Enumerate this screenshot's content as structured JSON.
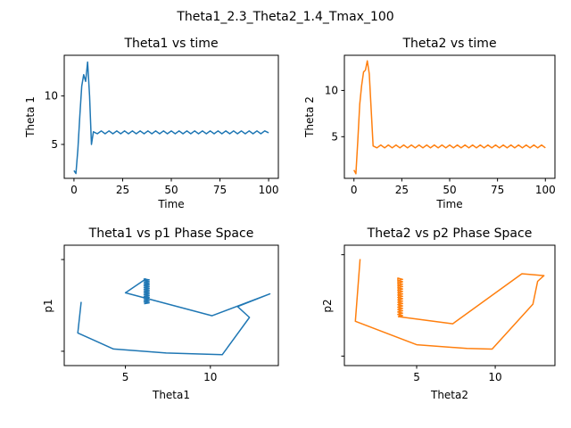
{
  "figure": {
    "suptitle": "Theta1_2.3_Theta2_1.4_Tmax_100"
  },
  "chart_data": [
    {
      "type": "line",
      "title": "Theta1 vs time",
      "xlabel": "Time",
      "ylabel": "Theta 1",
      "color": "#1f77b4",
      "xlim": [
        -5,
        105
      ],
      "ylim": [
        1.5,
        14.2
      ],
      "xticks": [
        0,
        25,
        50,
        75,
        100
      ],
      "yticks": [
        5,
        10
      ],
      "x": [
        0,
        1,
        2,
        3,
        4,
        5,
        6,
        7,
        8,
        9,
        10,
        12,
        14,
        16,
        18,
        20,
        22,
        24,
        26,
        28,
        30,
        32,
        34,
        36,
        38,
        40,
        42,
        44,
        46,
        48,
        50,
        52,
        54,
        56,
        58,
        60,
        62,
        64,
        66,
        68,
        70,
        72,
        74,
        76,
        78,
        80,
        82,
        84,
        86,
        88,
        90,
        92,
        94,
        96,
        98,
        100
      ],
      "y": [
        2.3,
        2.0,
        4.5,
        8.0,
        11.0,
        12.2,
        11.5,
        13.5,
        10.0,
        5.0,
        6.3,
        6.1,
        6.4,
        6.1,
        6.4,
        6.1,
        6.4,
        6.1,
        6.4,
        6.1,
        6.4,
        6.1,
        6.4,
        6.1,
        6.4,
        6.1,
        6.4,
        6.1,
        6.4,
        6.1,
        6.4,
        6.1,
        6.4,
        6.1,
        6.4,
        6.1,
        6.4,
        6.1,
        6.4,
        6.1,
        6.4,
        6.1,
        6.4,
        6.1,
        6.4,
        6.1,
        6.4,
        6.1,
        6.4,
        6.1,
        6.4,
        6.1,
        6.4,
        6.1,
        6.4,
        6.2
      ]
    },
    {
      "type": "line",
      "title": "Theta2 vs time",
      "xlabel": "Time",
      "ylabel": "Theta 2",
      "color": "#ff7f0e",
      "xlim": [
        -5,
        105
      ],
      "ylim": [
        0.5,
        13.8
      ],
      "xticks": [
        0,
        25,
        50,
        75,
        100
      ],
      "yticks": [
        5,
        10
      ],
      "x": [
        0,
        1,
        2,
        3,
        4,
        5,
        6,
        7,
        8,
        9,
        10,
        12,
        14,
        16,
        18,
        20,
        22,
        24,
        26,
        28,
        30,
        32,
        34,
        36,
        38,
        40,
        42,
        44,
        46,
        48,
        50,
        52,
        54,
        56,
        58,
        60,
        62,
        64,
        66,
        68,
        70,
        72,
        74,
        76,
        78,
        80,
        82,
        84,
        86,
        88,
        90,
        92,
        94,
        96,
        98,
        100
      ],
      "y": [
        1.4,
        1.0,
        4.5,
        8.5,
        10.5,
        12.0,
        12.2,
        13.2,
        11.8,
        8.0,
        4.0,
        3.8,
        4.1,
        3.8,
        4.1,
        3.8,
        4.1,
        3.8,
        4.1,
        3.8,
        4.1,
        3.8,
        4.1,
        3.8,
        4.1,
        3.8,
        4.1,
        3.8,
        4.1,
        3.8,
        4.1,
        3.8,
        4.1,
        3.8,
        4.1,
        3.8,
        4.1,
        3.8,
        4.1,
        3.8,
        4.1,
        3.8,
        4.1,
        3.8,
        4.1,
        3.8,
        4.1,
        3.8,
        4.1,
        3.8,
        4.1,
        3.8,
        4.1,
        3.8,
        4.1,
        3.8
      ]
    },
    {
      "type": "line",
      "title": "Theta1 vs p1 Phase Space",
      "xlabel": "Theta1",
      "ylabel": "p1",
      "color": "#1f77b4",
      "xlim": [
        1.4,
        14.0
      ],
      "ylim": [
        -10.5,
        10.5
      ],
      "xticks": [
        5,
        10
      ],
      "yticks": [
        -8,
        8
      ],
      "ytick_labels": [
        "",
        ""
      ],
      "path": [
        [
          2.4,
          0.6
        ],
        [
          2.2,
          -4.8
        ],
        [
          4.3,
          -7.6
        ],
        [
          7.4,
          -8.3
        ],
        [
          10.7,
          -8.6
        ],
        [
          12.3,
          -2.1
        ],
        [
          11.6,
          -0.2
        ],
        [
          13.5,
          2.0
        ],
        [
          10.1,
          -1.8
        ],
        [
          5.0,
          2.2
        ],
        [
          6.2,
          4.6
        ]
      ],
      "oscillation": {
        "x": [
          6.1,
          6.4
        ],
        "ymin": 0.3,
        "ymax": 4.6,
        "cycles": 14
      }
    },
    {
      "type": "line",
      "title": "Theta2 vs p2 Phase Space",
      "xlabel": "Theta2",
      "ylabel": "p2",
      "color": "#ff7f0e",
      "xlim": [
        0.4,
        13.8
      ],
      "ylim": [
        -9.5,
        9.5
      ],
      "xticks": [
        5,
        10
      ],
      "yticks": [
        -8,
        8
      ],
      "ytick_labels": [
        "",
        ""
      ],
      "path": [
        [
          1.4,
          7.3
        ],
        [
          1.1,
          -2.5
        ],
        [
          5.0,
          -6.2
        ],
        [
          8.2,
          -6.8
        ],
        [
          9.8,
          -6.9
        ],
        [
          12.4,
          0.2
        ],
        [
          12.7,
          3.8
        ],
        [
          13.1,
          4.7
        ],
        [
          11.7,
          5.0
        ],
        [
          7.3,
          -2.9
        ],
        [
          3.9,
          -1.8
        ]
      ],
      "oscillation": {
        "x": [
          3.8,
          4.1
        ],
        "ymin": -1.8,
        "ymax": 4.3,
        "cycles": 16
      }
    }
  ]
}
